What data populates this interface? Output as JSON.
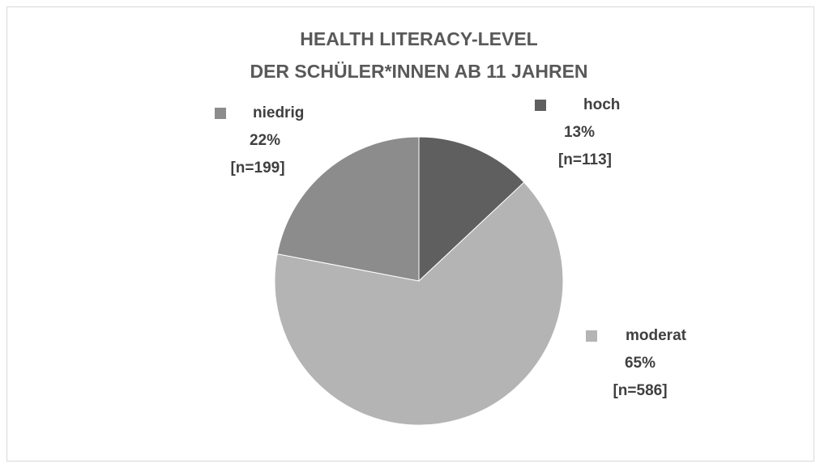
{
  "chart_data": {
    "type": "pie",
    "title": [
      "HEALTH LITERACY-LEVEL",
      "DER SCHÜLER*INNEN AB 11 JAHREN"
    ],
    "categories": [
      "hoch",
      "moderat",
      "niedrig"
    ],
    "values": [
      13,
      65,
      22
    ],
    "value_labels": [
      "13%",
      "65%",
      "22%"
    ],
    "count_labels": [
      "[n=113]",
      "[n=586]",
      "[n=199]"
    ],
    "colors": [
      "#5f5f5f",
      "#b4b4b4",
      "#8c8c8c"
    ]
  }
}
